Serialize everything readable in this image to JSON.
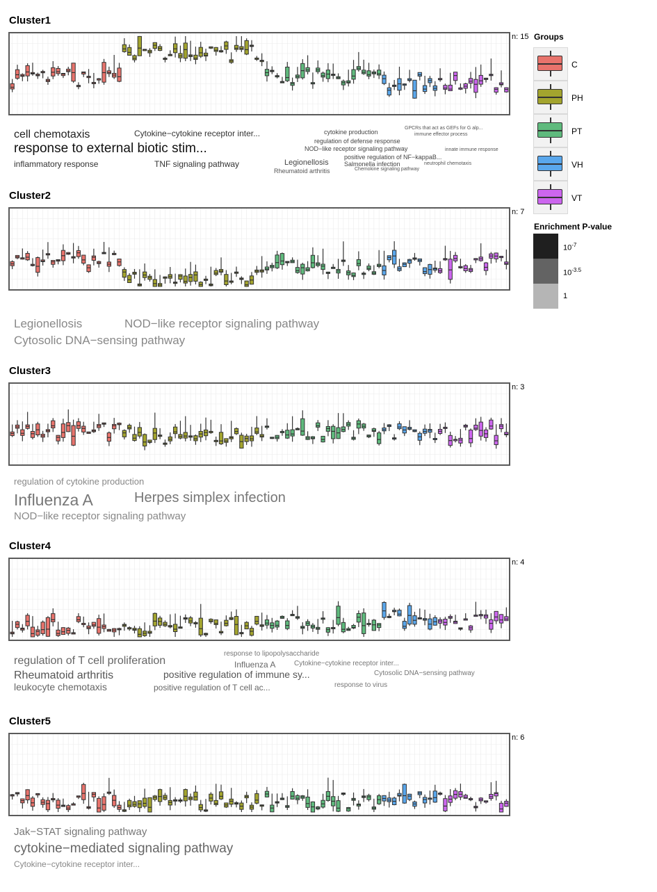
{
  "legend": {
    "groups_title": "Groups",
    "groups": [
      {
        "name": "C",
        "color": "#E8736C"
      },
      {
        "name": "PH",
        "color": "#A3A42E"
      },
      {
        "name": "PT",
        "color": "#5FBA7D"
      },
      {
        "name": "VH",
        "color": "#5AA7EC"
      },
      {
        "name": "VT",
        "color": "#CC66EE"
      }
    ],
    "pvalue_title": "Enrichment P-value",
    "pvalue_levels": [
      {
        "base": "10",
        "exp": "-7",
        "color": "#1f1f1f"
      },
      {
        "base": "10",
        "exp": "-3.5",
        "color": "#636363"
      },
      {
        "base": "1",
        "exp": "",
        "color": "#b5b5b5"
      }
    ]
  },
  "clusters": [
    {
      "title": "Cluster1",
      "n_label": "n: 15",
      "terms": [
        {
          "text": "cell chemotaxis",
          "size": 16,
          "color": "#222222"
        },
        {
          "text": "Cytokine−cytokine receptor inter...",
          "size": 12,
          "color": "#333333"
        },
        {
          "text": "response to external biotic stim...",
          "size": 19,
          "color": "#111111"
        },
        {
          "text": "inflammatory response",
          "size": 12,
          "color": "#333333"
        },
        {
          "text": "TNF signaling pathway",
          "size": 12,
          "color": "#333333"
        },
        {
          "text": "cytokine production",
          "size": 9,
          "color": "#444444"
        },
        {
          "text": "regulation of defense response",
          "size": 9,
          "color": "#444444"
        },
        {
          "text": "NOD−like receptor signaling pathway",
          "size": 9,
          "color": "#444444"
        },
        {
          "text": "positive regulation of NF−kappaB...",
          "size": 9,
          "color": "#444444"
        },
        {
          "text": "Legionellosis",
          "size": 11,
          "color": "#444444"
        },
        {
          "text": "Salmonella infection",
          "size": 9,
          "color": "#444444"
        },
        {
          "text": "Rheumatoid arthritis",
          "size": 9,
          "color": "#555555"
        },
        {
          "text": "Chemokine signaling pathway",
          "size": 7,
          "color": "#555555"
        },
        {
          "text": "GPCRs that act as GEFs for G alp...",
          "size": 7,
          "color": "#555555"
        },
        {
          "text": "immune effector process",
          "size": 7,
          "color": "#555555"
        },
        {
          "text": "innate immune response",
          "size": 7,
          "color": "#555555"
        },
        {
          "text": "neutrophil chemotaxis",
          "size": 7,
          "color": "#555555"
        }
      ]
    },
    {
      "title": "Cluster2",
      "n_label": "n: 7",
      "terms": [
        {
          "text": "Legionellosis",
          "size": 17,
          "color": "#888888"
        },
        {
          "text": "NOD−like receptor signaling pathway",
          "size": 17,
          "color": "#888888"
        },
        {
          "text": "Cytosolic DNA−sensing pathway",
          "size": 17,
          "color": "#888888"
        }
      ]
    },
    {
      "title": "Cluster3",
      "n_label": "n: 3",
      "terms": [
        {
          "text": "regulation of cytokine production",
          "size": 13,
          "color": "#888888"
        },
        {
          "text": "Influenza A",
          "size": 23,
          "color": "#777777"
        },
        {
          "text": "Herpes simplex infection",
          "size": 20,
          "color": "#777777"
        },
        {
          "text": "NOD−like receptor signaling pathway",
          "size": 15,
          "color": "#888888"
        }
      ]
    },
    {
      "title": "Cluster4",
      "n_label": "n: 4",
      "terms": [
        {
          "text": "regulation of T cell proliferation",
          "size": 16,
          "color": "#666666"
        },
        {
          "text": "response to lipopolysaccharide",
          "size": 10,
          "color": "#777777"
        },
        {
          "text": "Influenza A",
          "size": 12,
          "color": "#666666"
        },
        {
          "text": "Cytokine−cytokine receptor inter...",
          "size": 10,
          "color": "#777777"
        },
        {
          "text": "Rheumatoid arthritis",
          "size": 16,
          "color": "#555555"
        },
        {
          "text": "positive regulation of immune sy...",
          "size": 14,
          "color": "#555555"
        },
        {
          "text": "Cytosolic DNA−sensing pathway",
          "size": 10,
          "color": "#777777"
        },
        {
          "text": "leukocyte chemotaxis",
          "size": 14,
          "color": "#666666"
        },
        {
          "text": "positive regulation of T cell ac...",
          "size": 12,
          "color": "#666666"
        },
        {
          "text": "response to virus",
          "size": 10,
          "color": "#777777"
        }
      ]
    },
    {
      "title": "Cluster5",
      "n_label": "n: 6",
      "terms": [
        {
          "text": "Jak−STAT signaling pathway",
          "size": 15,
          "color": "#777777"
        },
        {
          "text": "cytokine−mediated signaling pathway",
          "size": 19,
          "color": "#666666"
        },
        {
          "text": "Cytokine−cytokine receptor inter...",
          "size": 12,
          "color": "#888888"
        }
      ]
    }
  ],
  "chart_data": [
    {
      "type": "box",
      "title": "Cluster1",
      "n_genes": 15,
      "groups": [
        "C",
        "PH",
        "PT",
        "VH",
        "VT"
      ],
      "samples_per_group": {
        "C": 22,
        "PH": 28,
        "PT": 23,
        "VH": 11,
        "VT": 14
      },
      "ylim": [
        0,
        1
      ],
      "group_median_level": {
        "C": 0.43,
        "PH": 0.77,
        "PT": 0.47,
        "VH": 0.38,
        "VT": 0.39
      }
    },
    {
      "type": "box",
      "title": "Cluster2",
      "n_genes": 7,
      "groups": [
        "C",
        "PH",
        "PT",
        "VH",
        "VT"
      ],
      "samples_per_group": {
        "C": 22,
        "PH": 28,
        "PT": 23,
        "VH": 11,
        "VT": 14
      },
      "ylim": [
        0,
        1
      ],
      "group_median_level": {
        "C": 0.35,
        "PH": 0.1,
        "PT": 0.25,
        "VH": 0.3,
        "VT": 0.3
      }
    },
    {
      "type": "box",
      "title": "Cluster3",
      "n_genes": 3,
      "groups": [
        "C",
        "PH",
        "PT",
        "VH",
        "VT"
      ],
      "samples_per_group": {
        "C": 22,
        "PH": 28,
        "PT": 23,
        "VH": 11,
        "VT": 14
      },
      "ylim": [
        0,
        1
      ],
      "group_median_level": {
        "C": 0.4,
        "PH": 0.35,
        "PT": 0.4,
        "VH": 0.4,
        "VT": 0.38
      }
    },
    {
      "type": "box",
      "title": "Cluster4",
      "n_genes": 4,
      "groups": [
        "C",
        "PH",
        "PT",
        "VH",
        "VT"
      ],
      "samples_per_group": {
        "C": 22,
        "PH": 28,
        "PT": 23,
        "VH": 11,
        "VT": 14
      },
      "ylim": [
        0,
        1
      ],
      "group_median_level": {
        "C": 0.12,
        "PH": 0.14,
        "PT": 0.2,
        "VH": 0.25,
        "VT": 0.2
      }
    },
    {
      "type": "box",
      "title": "Cluster5",
      "n_genes": 6,
      "groups": [
        "C",
        "PH",
        "PT",
        "VH",
        "VT"
      ],
      "samples_per_group": {
        "C": 22,
        "PH": 28,
        "PT": 23,
        "VH": 11,
        "VT": 14
      },
      "ylim": [
        0,
        1
      ],
      "group_median_level": {
        "C": 0.15,
        "PH": 0.12,
        "PT": 0.14,
        "VH": 0.17,
        "VT": 0.15
      }
    }
  ]
}
